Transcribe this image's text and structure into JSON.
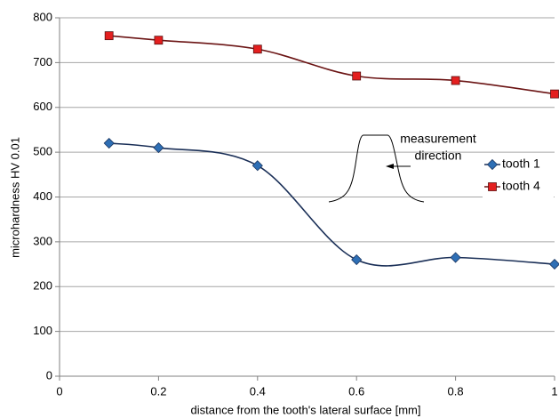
{
  "chart_data": {
    "type": "line",
    "x_label": "distance from the tooth's lateral surface  [mm]",
    "y_label": "microhardness  HV 0.01",
    "annotations": [
      "measurement",
      "direction"
    ],
    "x": [
      0.1,
      0.2,
      0.4,
      0.6,
      0.8,
      1
    ],
    "series": [
      {
        "name": "tooth 1",
        "color": "#2e6fb5",
        "line_color": "#1a2f57",
        "marker": "diamond",
        "values": [
          520,
          510,
          470,
          260,
          265,
          250
        ]
      },
      {
        "name": "tooth 4",
        "color": "#e41f1f",
        "line_color": "#6b1414",
        "marker": "square",
        "values": [
          760,
          750,
          730,
          670,
          660,
          630
        ]
      }
    ],
    "xlim": [
      0,
      1
    ],
    "xticks": [
      0,
      0.2,
      0.4,
      0.6,
      0.8,
      1
    ],
    "ylim": [
      0,
      800
    ],
    "yticks": [
      0,
      100,
      200,
      300,
      400,
      500,
      600,
      700,
      800
    ],
    "grid": true,
    "legend": "right"
  }
}
